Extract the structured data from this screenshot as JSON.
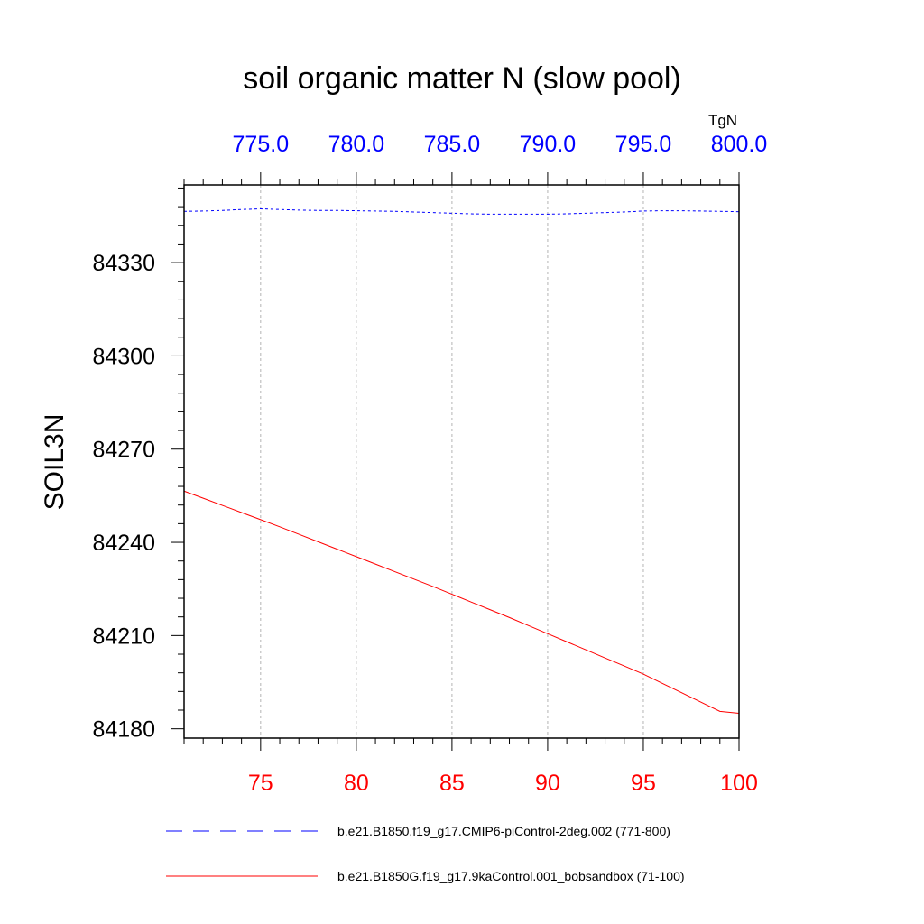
{
  "chart_data": {
    "type": "line",
    "title": "soil organic matter N (slow pool)",
    "units": "TgN",
    "ylabel": "SOIL3N",
    "xlabel": "",
    "ylim": [
      84177,
      84355
    ],
    "yticks": [
      84180,
      84210,
      84240,
      84270,
      84300,
      84330
    ],
    "ytick_labels": [
      "84180",
      "84210",
      "84240",
      "84270",
      "84300",
      "84330"
    ],
    "x_bottom": {
      "range": [
        71,
        100
      ],
      "ticks": [
        75,
        80,
        85,
        90,
        95,
        100
      ],
      "tick_labels": [
        "75",
        "80",
        "85",
        "90",
        "95",
        "100"
      ],
      "color": "#ff0000"
    },
    "x_top": {
      "range": [
        771,
        800
      ],
      "ticks": [
        775,
        780,
        785,
        790,
        795,
        800
      ],
      "tick_labels": [
        "775.0",
        "780.0",
        "785.0",
        "790.0",
        "795.0",
        "800.0"
      ],
      "color": "#0000ff"
    },
    "grid": true,
    "series": [
      {
        "name": "b.e21.B1850.f19_g17.CMIP6-piControl-2deg.002 (771-800)",
        "axis": "top",
        "color": "#0000ff",
        "dash": "dashed",
        "x": [
          771,
          772,
          773,
          774,
          775,
          776,
          777,
          778,
          779,
          780,
          781,
          782,
          783,
          784,
          785,
          786,
          787,
          788,
          789,
          790,
          791,
          792,
          793,
          794,
          795,
          796,
          797,
          798,
          799,
          800
        ],
        "values": [
          84346.5,
          84346.6,
          84346.8,
          84347.1,
          84347.3,
          84347.1,
          84346.9,
          84346.8,
          84346.8,
          84346.7,
          84346.6,
          84346.5,
          84346.3,
          84346.1,
          84345.9,
          84345.7,
          84345.6,
          84345.6,
          84345.6,
          84345.6,
          84345.7,
          84345.9,
          84346.1,
          84346.3,
          84346.6,
          84346.7,
          84346.7,
          84346.6,
          84346.5,
          84346.4
        ]
      },
      {
        "name": "b.e21.B1850G.f19_g17.9kaControl.001_bobsandbox (71-100)",
        "axis": "bottom",
        "color": "#ff0000",
        "dash": "solid",
        "x": [
          71,
          72,
          73,
          74,
          75,
          76,
          77,
          78,
          79,
          80,
          81,
          82,
          83,
          84,
          85,
          86,
          87,
          88,
          89,
          90,
          91,
          92,
          93,
          94,
          95,
          96,
          97,
          98,
          99,
          100
        ],
        "values": [
          84256.5,
          84254.2,
          84251.9,
          84249.6,
          84247.3,
          84245.0,
          84242.6,
          84240.2,
          84237.8,
          84235.4,
          84233.0,
          84230.6,
          84228.2,
          84225.8,
          84223.3,
          84220.8,
          84218.3,
          84215.8,
          84213.2,
          84210.6,
          84208.0,
          84205.4,
          84202.8,
          84200.2,
          84197.6,
          84194.6,
          84191.6,
          84188.6,
          84185.6,
          84185.0
        ]
      }
    ],
    "legend_position": "bottom"
  }
}
